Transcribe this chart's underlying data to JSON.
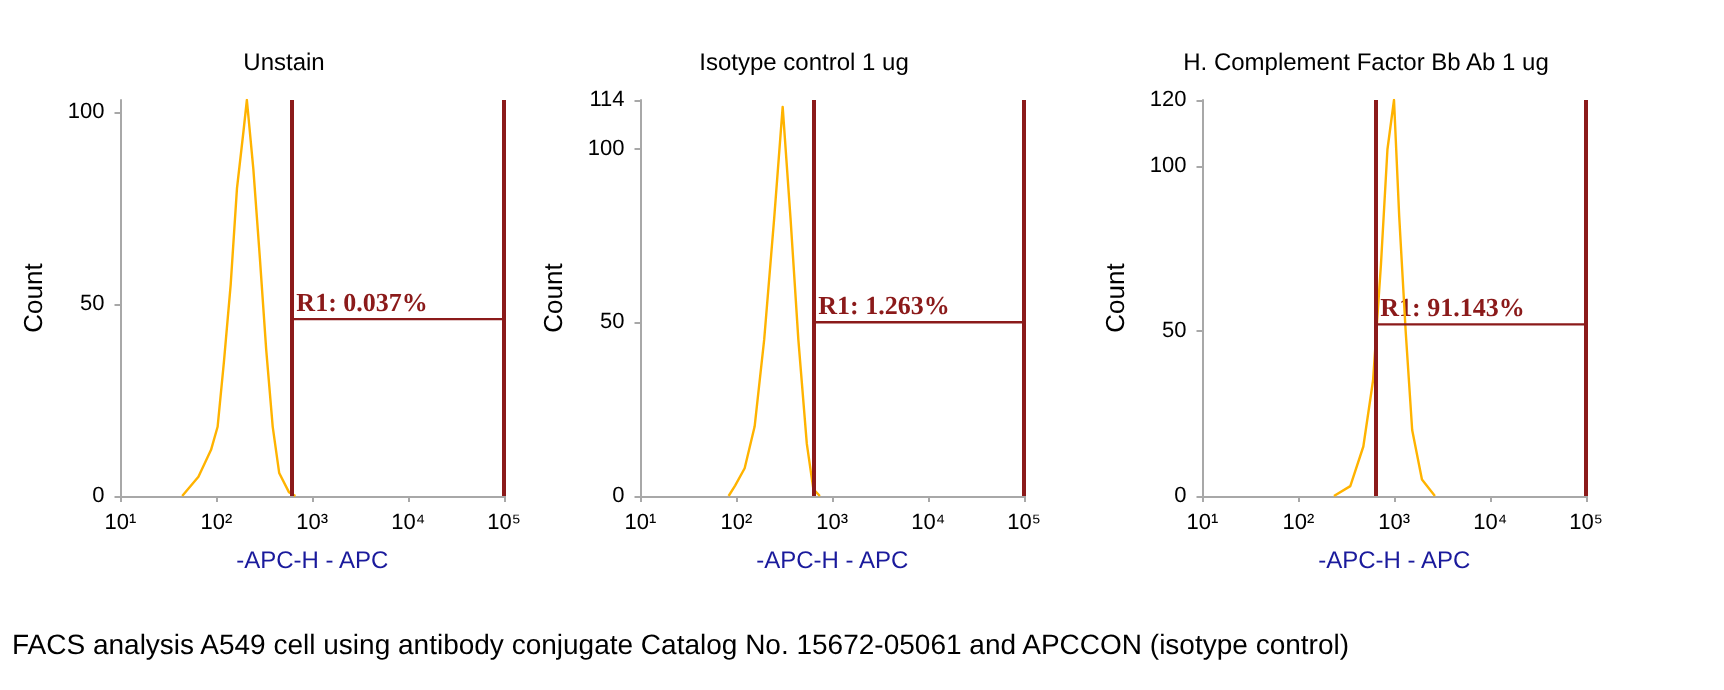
{
  "chart_data": [
    {
      "type": "line",
      "title": "Unstain",
      "xlabel": "-APC-H - APC",
      "ylabel": "Count",
      "log": "x",
      "grid": false,
      "xlim": [
        10,
        100000
      ],
      "xticks": [
        {
          "value": 10,
          "label": "10¹"
        },
        {
          "value": 100,
          "label": "10²"
        },
        {
          "value": 1000,
          "label": "10³"
        },
        {
          "value": 10000,
          "label": "10⁴"
        },
        {
          "value": 100000,
          "label": "10⁵"
        }
      ],
      "ylim": [
        0,
        103
      ],
      "yticks": [
        0,
        50,
        100
      ],
      "ref_lines": [
        {
          "axis": "x",
          "value": 620,
          "color": "#8b1a1a"
        },
        {
          "axis": "x",
          "value": 100000,
          "color": "#8b1a1a"
        }
      ],
      "series": [
        {
          "color": "#ffb300",
          "x": [
            44,
            65,
            88,
            103,
            120,
            141,
            164,
            192,
            208,
            243,
            284,
            331,
            387,
            452,
            571,
            667
          ],
          "values": [
            0,
            5,
            12,
            18,
            35,
            55,
            80,
            95,
            103,
            85,
            62,
            38,
            18,
            6,
            1,
            0
          ]
        },
        {
          "name": "R1: 0.037%",
          "color": "#8b1a1a",
          "x": [
            620,
            100000
          ],
          "values": [
            46,
            46
          ]
        }
      ],
      "annotations": [
        "FACS analysis A549 cell using antibody conjugate Catalog No. 15672-05061 and APCCON (isotype control)"
      ]
    },
    {
      "type": "line",
      "title": "Isotype control 1 ug",
      "xlabel": "-APC-H - APC",
      "ylabel": "Count",
      "log": "x",
      "grid": false,
      "xlim": [
        10,
        100000
      ],
      "xticks": [
        {
          "value": 10,
          "label": "10¹"
        },
        {
          "value": 100,
          "label": "10²"
        },
        {
          "value": 1000,
          "label": "10³"
        },
        {
          "value": 10000,
          "label": "10⁴"
        },
        {
          "value": 100000,
          "label": "10⁵"
        }
      ],
      "ylim": [
        0,
        114
      ],
      "yticks": [
        0,
        50,
        100,
        114
      ],
      "ref_lines": [
        {
          "axis": "x",
          "value": 650,
          "color": "#8b1a1a"
        },
        {
          "axis": "x",
          "value": 100000,
          "color": "#8b1a1a"
        }
      ],
      "series": [
        {
          "color": "#ffb300",
          "x": [
            83,
            97,
            122,
            155,
            195,
            248,
            304,
            367,
            443,
            543,
            635,
            743
          ],
          "values": [
            0,
            3,
            8,
            20,
            45,
            80,
            112,
            80,
            45,
            15,
            2,
            0
          ]
        },
        {
          "name": "R1: 1.263%",
          "color": "#8b1a1a",
          "x": [
            650,
            100000
          ],
          "values": [
            50,
            50
          ]
        }
      ]
    },
    {
      "type": "line",
      "title": "H. Complement Factor Bb Ab 1 ug",
      "xlabel": "-APC-H - APC",
      "ylabel": "Count",
      "log": "x",
      "grid": false,
      "xlim": [
        10,
        100000
      ],
      "xticks": [
        {
          "value": 10,
          "label": "10¹"
        },
        {
          "value": 100,
          "label": "10²"
        },
        {
          "value": 1000,
          "label": "10³"
        },
        {
          "value": 10000,
          "label": "10⁴"
        },
        {
          "value": 100000,
          "label": "10⁵"
        }
      ],
      "ylim": [
        0,
        120
      ],
      "yticks": [
        0,
        50,
        100,
        120
      ],
      "ref_lines": [
        {
          "axis": "x",
          "value": 650,
          "color": "#8b1a1a"
        },
        {
          "axis": "x",
          "value": 100000,
          "color": "#8b1a1a"
        }
      ],
      "series": [
        {
          "color": "#ffb300",
          "x": [
            235,
            348,
            476,
            601,
            726,
            849,
            994,
            1125,
            1315,
            1538,
            1945,
            2655
          ],
          "values": [
            0,
            3,
            15,
            35,
            70,
            105,
            120,
            85,
            50,
            20,
            5,
            0
          ]
        },
        {
          "name": "R1: 91.143%",
          "color": "#8b1a1a",
          "x": [
            650,
            100000
          ],
          "values": [
            52,
            52
          ]
        }
      ]
    }
  ]
}
